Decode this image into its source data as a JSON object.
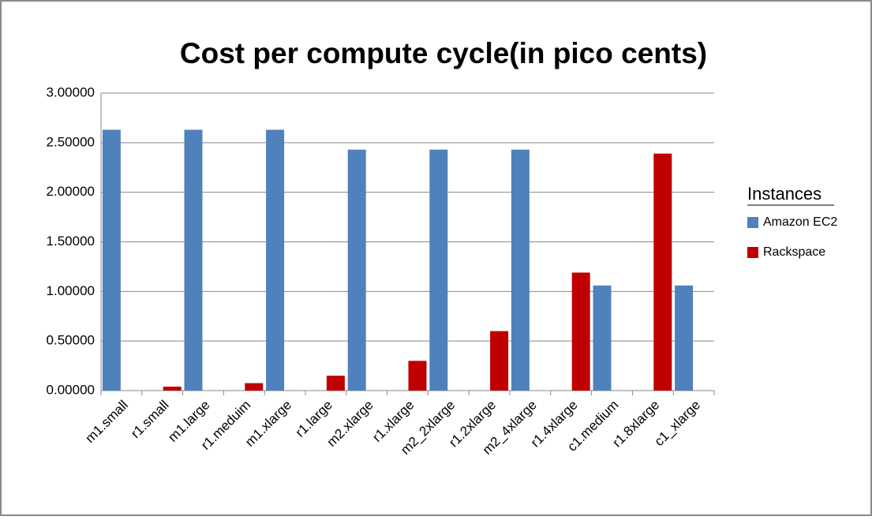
{
  "chart_data": {
    "type": "bar",
    "title": "Cost per compute cycle(in pico cents)",
    "categories": [
      "m1.small",
      "r1.small",
      "m1.large",
      "r1.meduim",
      "m1.xlarge",
      "r1.large",
      "m2.xlarge",
      "r1.xlarge",
      "m2_2xlarge",
      "r1.2xlarge",
      "m2_4xlarge",
      "r1.4xlarge",
      "c1.medium",
      "r1.8xlarge",
      "c1_xlarge"
    ],
    "series": [
      {
        "name": "Amazon EC2",
        "color": "#4f81bd",
        "values": [
          2.63,
          null,
          2.63,
          null,
          2.63,
          null,
          2.43,
          null,
          2.43,
          null,
          2.43,
          null,
          1.06,
          null,
          1.06
        ]
      },
      {
        "name": "Rackspace",
        "color": "#c00000",
        "values": [
          null,
          0.04,
          null,
          0.075,
          null,
          0.15,
          null,
          0.3,
          null,
          0.6,
          null,
          1.19,
          null,
          2.39,
          null
        ]
      }
    ],
    "legend_title": "Instances",
    "legend_position": "right",
    "ylim": [
      0,
      3
    ],
    "yticks": [
      {
        "value": 0,
        "label": "0.00000"
      },
      {
        "value": 0.5,
        "label": "0.50000"
      },
      {
        "value": 1,
        "label": "1.00000"
      },
      {
        "value": 1.5,
        "label": "1.50000"
      },
      {
        "value": 2,
        "label": "2.00000"
      },
      {
        "value": 2.5,
        "label": "2.50000"
      },
      {
        "value": 3,
        "label": "3.00000"
      }
    ],
    "grid": true
  }
}
